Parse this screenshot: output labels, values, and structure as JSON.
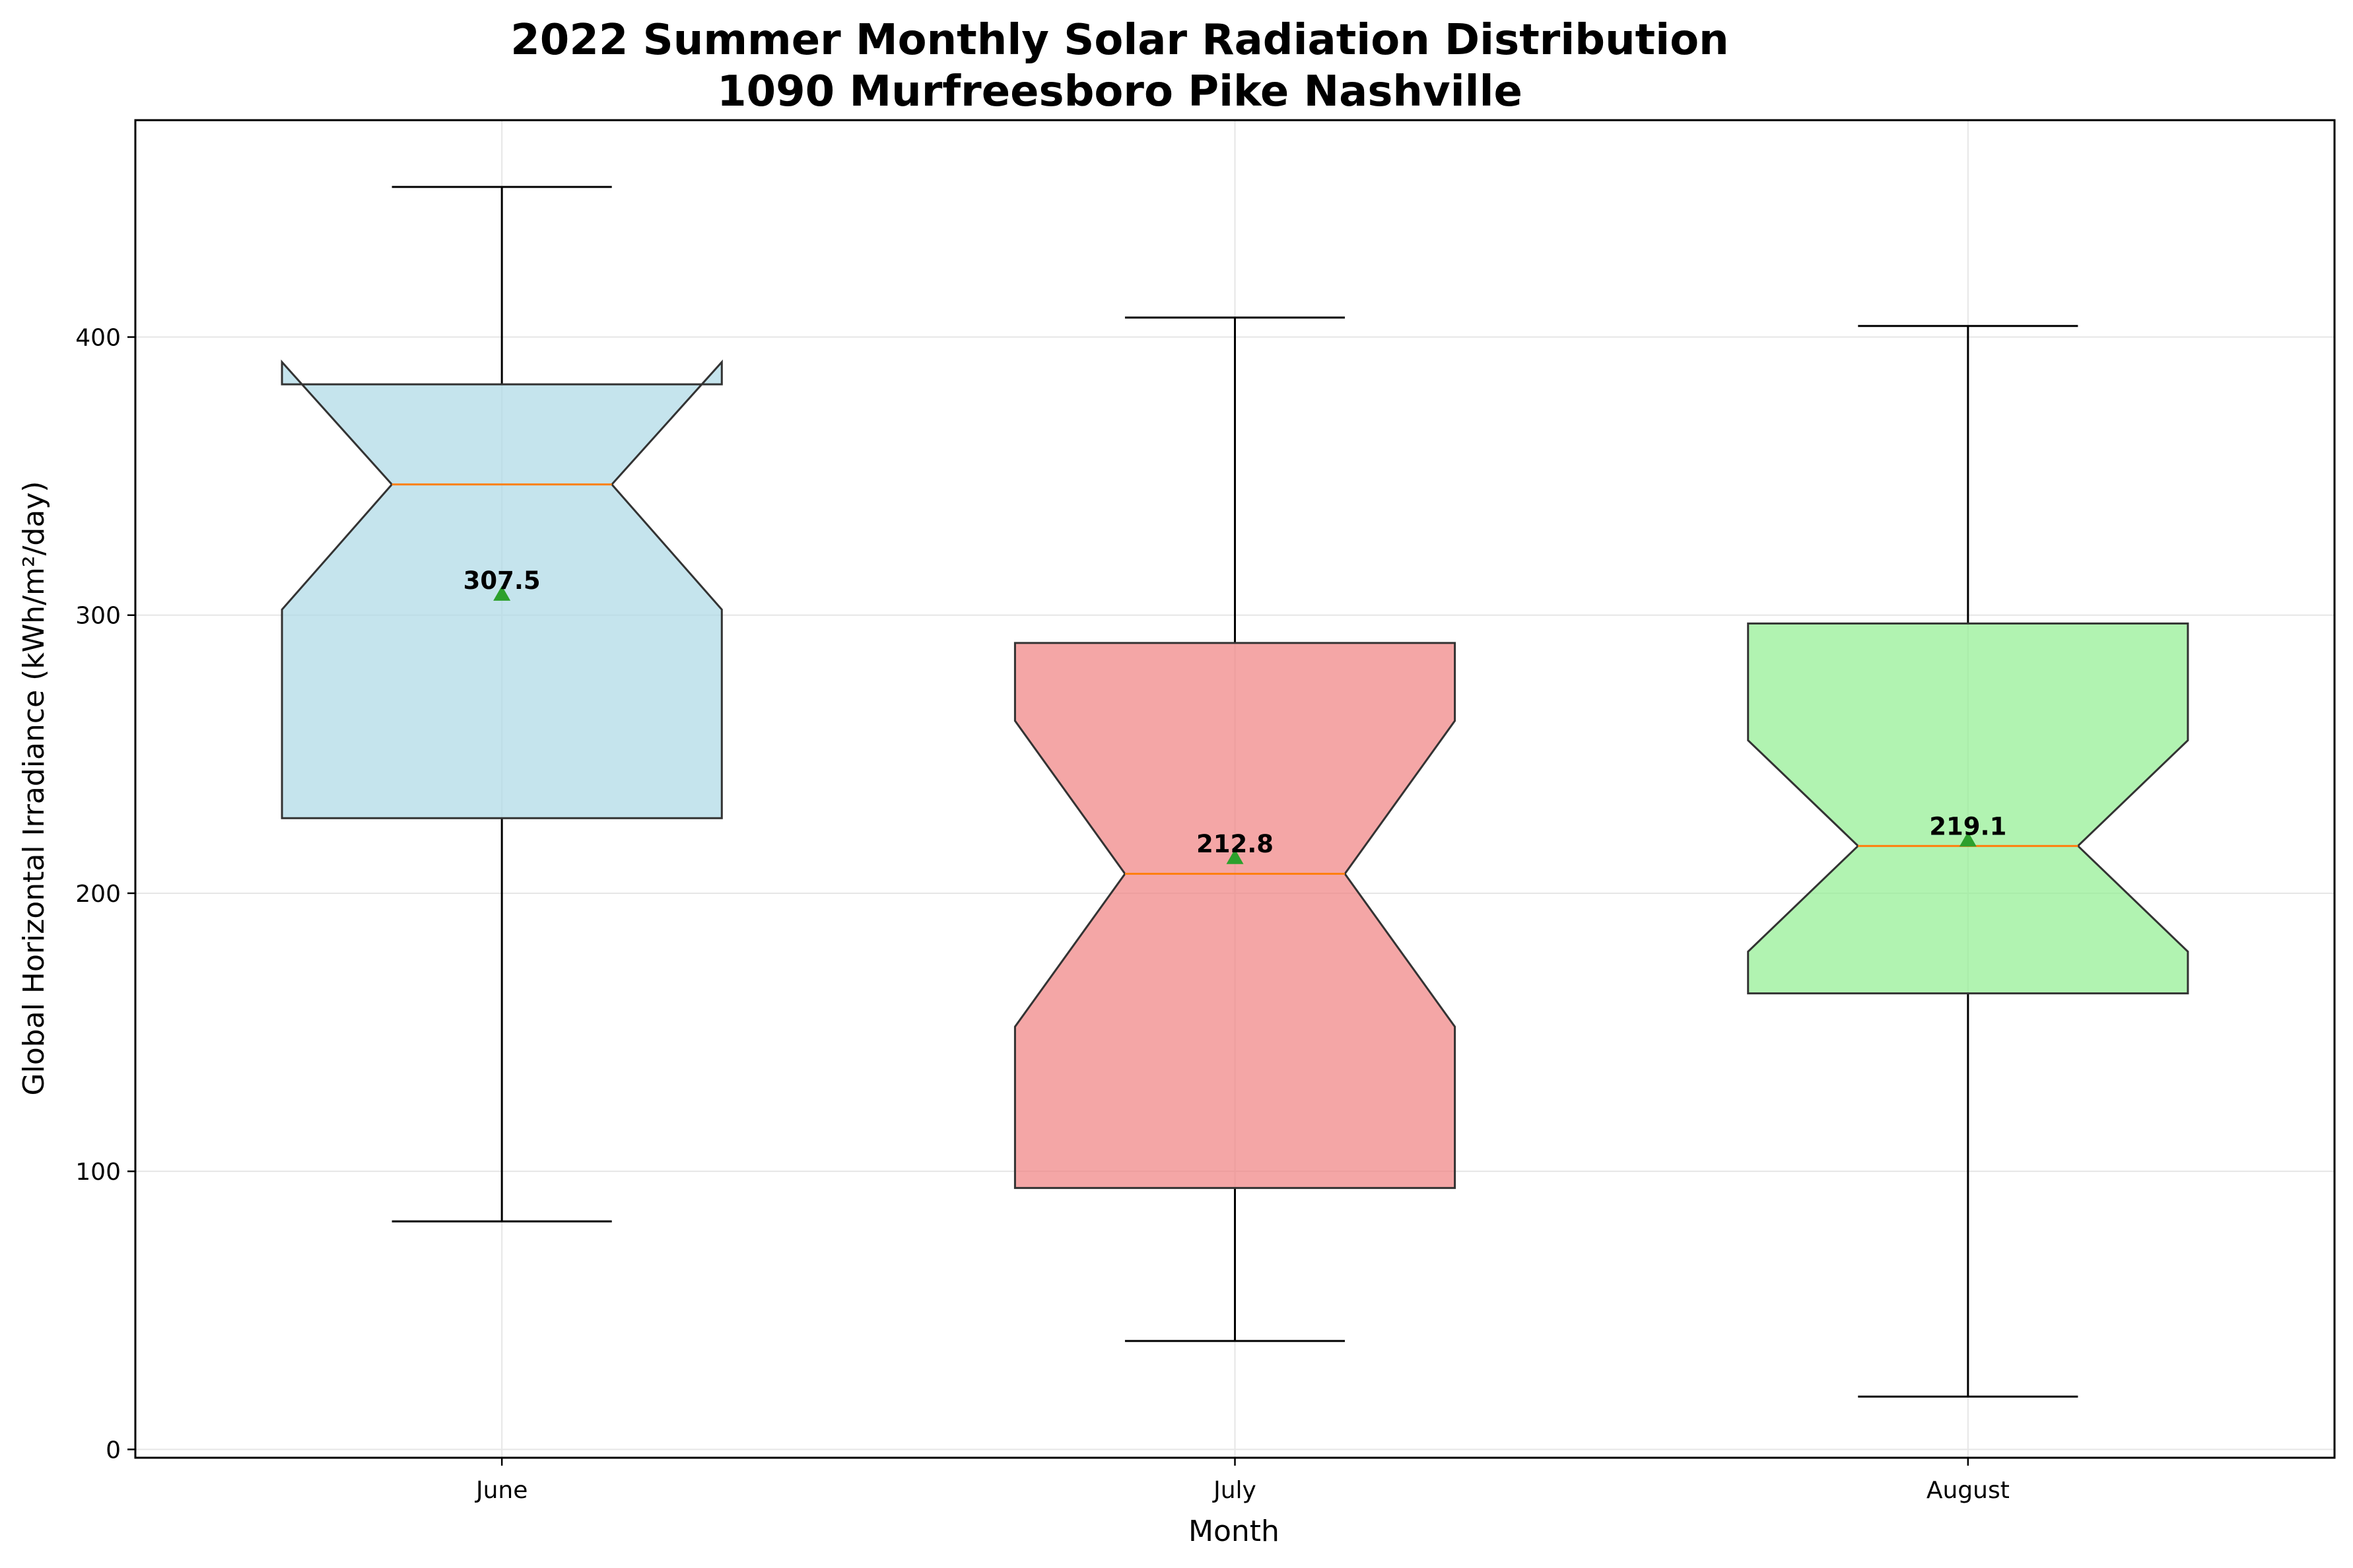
{
  "chart_data": {
    "type": "box",
    "title": "2022 Summer Monthly Solar Radiation Distribution",
    "subtitle": "1090 Murfreesboro Pike Nashville",
    "xlabel": "Month",
    "ylabel": "Global Horizontal Irradiance (kWh/m²/day)",
    "ylim": [
      -3,
      478
    ],
    "yticks": [
      0,
      100,
      200,
      300,
      400
    ],
    "grid": true,
    "notched": true,
    "categories": [
      "June",
      "July",
      "August"
    ],
    "boxes": [
      {
        "category": "June",
        "whisker_low": 82,
        "q1": 227,
        "median": 347,
        "q3": 383,
        "whisker_high": 454,
        "notch_low": 302,
        "notch_high": 391,
        "mean": 307.5,
        "mean_label": "307.5",
        "color": "#add8e6"
      },
      {
        "category": "July",
        "whisker_low": 39,
        "q1": 94,
        "median": 207,
        "q3": 290,
        "whisker_high": 407,
        "notch_low": 152,
        "notch_high": 262,
        "mean": 212.8,
        "mean_label": "212.8",
        "color": "#f08080"
      },
      {
        "category": "August",
        "whisker_low": 19,
        "q1": 164,
        "median": 217,
        "q3": 297,
        "whisker_high": 404,
        "notch_low": 179,
        "notch_high": 255,
        "mean": 219.1,
        "mean_label": "219.1",
        "color": "#90ee90"
      }
    ],
    "median_color": "#ff7f0e",
    "mean_marker_color": "#2ca02c"
  }
}
